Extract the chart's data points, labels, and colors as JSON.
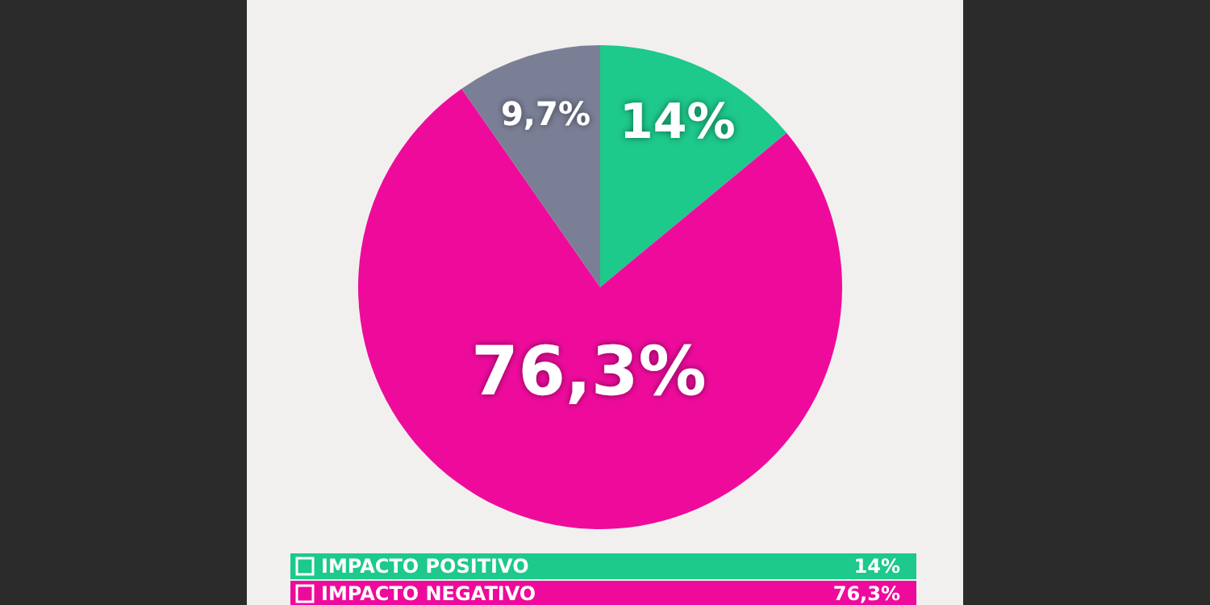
{
  "chart_data": {
    "type": "pie",
    "categories": [
      "IMPACTO POSITIVO",
      "IMPACTO NEGATIVO",
      null
    ],
    "values": [
      14,
      76.3,
      9.7
    ],
    "colors": [
      "#1dc98b",
      "#ee0b9c",
      "#7b7f96"
    ],
    "value_labels": [
      "14%",
      "76,3%",
      "9,7%"
    ],
    "legend": "bottom"
  }
}
